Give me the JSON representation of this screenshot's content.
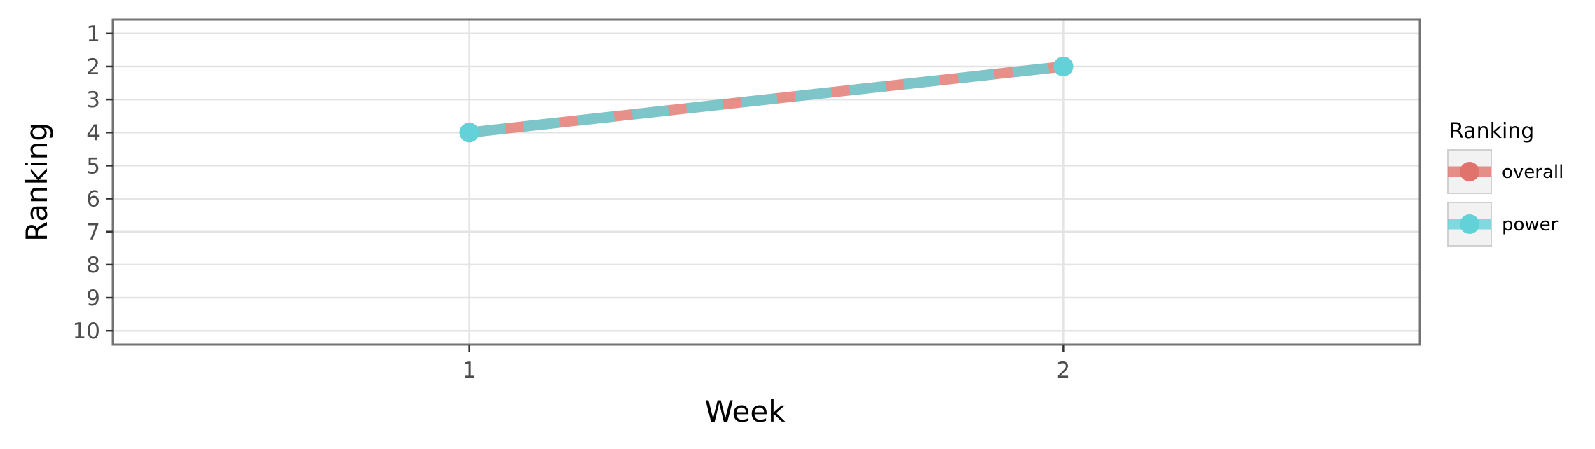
{
  "chart_data": {
    "type": "line",
    "title": "",
    "xlabel": "Week",
    "ylabel": "Ranking",
    "x_ticks": [
      1,
      2
    ],
    "y_ticks": [
      1,
      2,
      3,
      4,
      5,
      6,
      7,
      8,
      9,
      10
    ],
    "xlim": [
      0.4,
      2.6
    ],
    "ylim": [
      10.42,
      0.58
    ],
    "y_reversed": true,
    "grid": true,
    "legend": {
      "title": "Ranking",
      "position": "right"
    },
    "series": [
      {
        "name": "overall",
        "color": "#e0746c",
        "line_style": "solid",
        "x": [
          1,
          2
        ],
        "y": [
          4,
          2
        ]
      },
      {
        "name": "power",
        "color": "#62d2d8",
        "line_style": "dashed",
        "x": [
          1,
          2
        ],
        "y": [
          4,
          2
        ]
      }
    ]
  }
}
